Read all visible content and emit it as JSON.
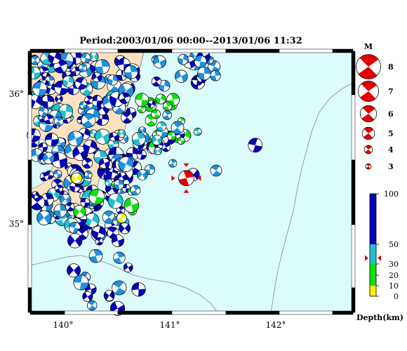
{
  "map": {
    "title": "Period:2003/01/06 00:00--2013/01/06 11:32",
    "lon_labels": [
      "140°",
      "141°",
      "142°"
    ],
    "lat_labels": [
      "36°",
      "35°"
    ],
    "lon_ticks": [
      140,
      141,
      142
    ],
    "lat_ticks": [
      36,
      35
    ],
    "lon_range": [
      139.68,
      142.72
    ],
    "lat_range": [
      34.28,
      36.42
    ],
    "colors": {
      "ocean": "#dcfcfc",
      "land": "#fde2c2",
      "deep_blue": "#0000b4",
      "mid_blue": "#2090e0",
      "cyan": "#20c0d0",
      "green": "#10e010",
      "yellow": "#f8f000",
      "highlight_red": "#e00000",
      "trench_line": "#888888"
    }
  },
  "events": {
    "main_event": {
      "lon": 141.15,
      "lat": 35.38,
      "magnitude": 5.3,
      "depth_km": 36,
      "color": "#e00000"
    },
    "isolated_event": {
      "lon": 141.8,
      "lat": 35.65,
      "magnitude": 4.7,
      "depth_km": 55,
      "color": "#0000b4"
    }
  },
  "magnitude_legend": {
    "label": "M",
    "items": [
      {
        "label": "8",
        "value": 8
      },
      {
        "label": "7",
        "value": 7
      },
      {
        "label": "6",
        "value": 6
      },
      {
        "label": "5",
        "value": 5
      },
      {
        "label": "4",
        "value": 4
      },
      {
        "label": "3",
        "value": 3
      }
    ]
  },
  "depth_scale": {
    "title": "Depth(km)",
    "tick_labels": [
      "100",
      "50",
      "30",
      "20",
      "10",
      "0"
    ],
    "tick_values": [
      100,
      50,
      30,
      20,
      10,
      0
    ],
    "bands": [
      {
        "from": 0,
        "to": 10,
        "color": "#f8f000"
      },
      {
        "from": 10,
        "to": 30,
        "color": "#10e010"
      },
      {
        "from": 30,
        "to": 50,
        "color": "#20c0d0"
      },
      {
        "from": 50,
        "to": 100,
        "color": "#0000b4"
      }
    ],
    "marker_depth": 36
  }
}
